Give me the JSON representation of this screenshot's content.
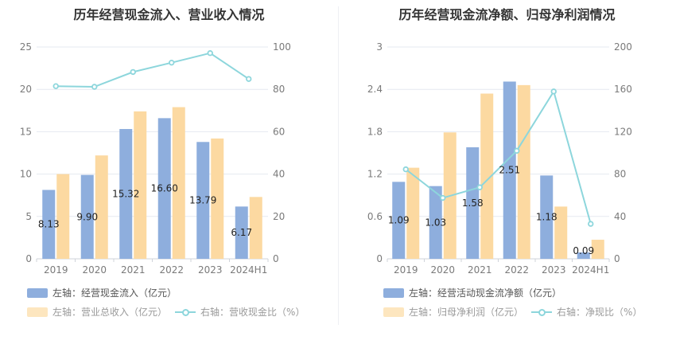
{
  "colors": {
    "primary": "#8eaedd",
    "secondary": "#fcd9a1",
    "line": "#8dd6dc",
    "grid": "#e6e9f0",
    "axis": "#cfd3da"
  },
  "chart_data": [
    {
      "type": "bar",
      "title": "历年经营现金流入、营业收入情况",
      "categories": [
        "2019",
        "2020",
        "2021",
        "2022",
        "2023",
        "2024H1"
      ],
      "y_left_ticks": [
        "0",
        "5",
        "10",
        "15",
        "20",
        "25"
      ],
      "y_right_ticks": [
        "0",
        "20",
        "40",
        "60",
        "80",
        "100"
      ],
      "ylim_left": [
        0,
        25
      ],
      "ylim_right": [
        0,
        100
      ],
      "series": [
        {
          "name": "经营现金流入",
          "axis": "left",
          "kind": "bar",
          "values": [
            8.13,
            9.9,
            15.32,
            16.6,
            13.79,
            6.17
          ],
          "labels": [
            "8.13",
            "9.90",
            "15.32",
            "16.60",
            "13.79",
            "6.17"
          ]
        },
        {
          "name": "营业总收入",
          "axis": "left",
          "kind": "bar",
          "values": [
            10.0,
            12.2,
            17.4,
            17.9,
            14.2,
            7.3
          ]
        },
        {
          "name": "营收现金比",
          "axis": "right",
          "kind": "line",
          "values": [
            81.5,
            81.2,
            88.2,
            92.6,
            97.1,
            84.9
          ]
        }
      ],
      "legend": [
        {
          "prefix": "左轴：",
          "name": "经营现金流入（亿元）"
        },
        {
          "prefix": "左轴：",
          "name": "营业总收入（亿元）"
        },
        {
          "prefix": "右轴：",
          "name": "营收现金比（%）"
        }
      ]
    },
    {
      "type": "bar",
      "title": "历年经营现金流净额、归母净利润情况",
      "categories": [
        "2019",
        "2020",
        "2021",
        "2022",
        "2023",
        "2024H1"
      ],
      "y_left_ticks": [
        "0",
        "0.6",
        "1.2",
        "1.8",
        "2.4",
        "3"
      ],
      "y_right_ticks": [
        "0",
        "40",
        "80",
        "120",
        "160",
        "200"
      ],
      "ylim_left": [
        0,
        3
      ],
      "ylim_right": [
        0,
        200
      ],
      "series": [
        {
          "name": "经营活动现金流净额",
          "axis": "left",
          "kind": "bar",
          "values": [
            1.09,
            1.03,
            1.58,
            2.51,
            1.18,
            0.09
          ],
          "labels": [
            "1.09",
            "1.03",
            "1.58",
            "2.51",
            "1.18",
            "0.09"
          ]
        },
        {
          "name": "归母净利润",
          "axis": "left",
          "kind": "bar",
          "values": [
            1.29,
            1.79,
            2.34,
            2.46,
            0.74,
            0.27
          ]
        },
        {
          "name": "净现比",
          "axis": "right",
          "kind": "line",
          "values": [
            84.5,
            57.5,
            67.5,
            102.0,
            158.0,
            33.0
          ]
        }
      ],
      "legend": [
        {
          "prefix": "左轴：",
          "name": "经营活动现金流净额（亿元）"
        },
        {
          "prefix": "左轴：",
          "name": "归母净利润（亿元）"
        },
        {
          "prefix": "右轴：",
          "name": "净现比（%）"
        }
      ]
    }
  ]
}
